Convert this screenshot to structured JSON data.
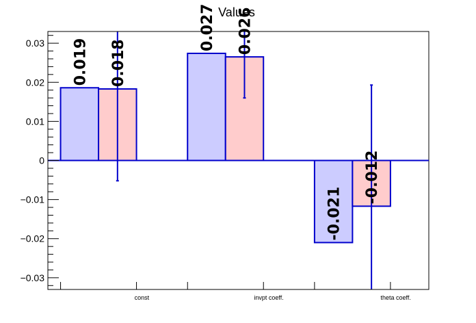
{
  "chart_data": {
    "type": "bar",
    "title": "Values",
    "xlabel": "",
    "ylabel": "",
    "categories": [
      "const",
      "invpt coeff.",
      "theta coeff."
    ],
    "ylim": [
      -0.033,
      0.033
    ],
    "yticks": [
      -0.03,
      -0.02,
      -0.01,
      0,
      0.01,
      0.02,
      0.03
    ],
    "ytick_labels": [
      "−0.03",
      "−0.02",
      "−0.01",
      "0",
      "0.01",
      "0.02",
      "0.03"
    ],
    "grid": false,
    "legend": "none",
    "series": [
      {
        "values": [
          0.0186,
          0.0274,
          -0.021
        ],
        "labels": [
          "0.019",
          "0.027",
          "-0.021"
        ],
        "errors": [
          null,
          null,
          null
        ],
        "fill": "#ccccff",
        "edge": "#0000cc"
      },
      {
        "values": [
          0.0183,
          0.0265,
          -0.0117
        ],
        "labels": [
          "0.018",
          "0.026",
          "-0.012"
        ],
        "errors": [
          0.0235,
          0.0105,
          0.031
        ],
        "fill": "#ffcccc",
        "edge": "#0000cc"
      }
    ]
  }
}
